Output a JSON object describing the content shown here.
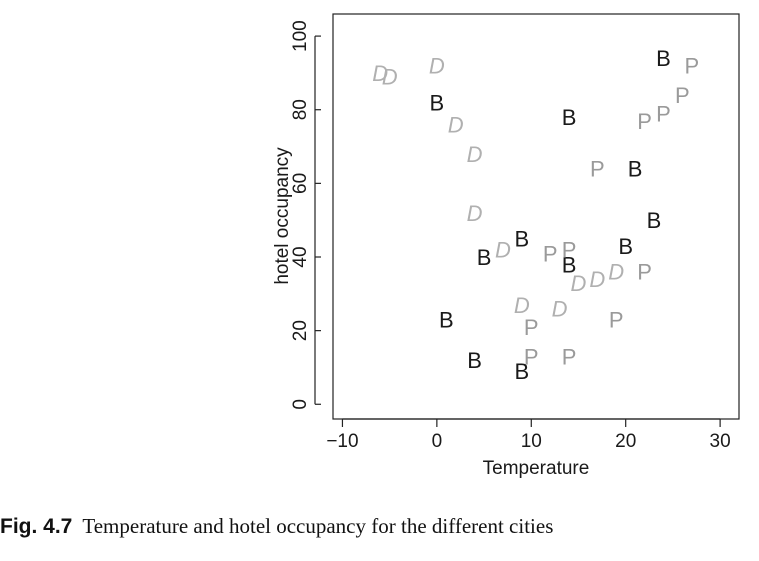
{
  "chart_data": {
    "type": "scatter",
    "xlabel": "Temperature",
    "ylabel": "hotel occupancy",
    "xlim": [
      -11,
      32
    ],
    "ylim": [
      -4,
      106
    ],
    "x_ticks": [
      -10,
      0,
      10,
      20,
      30
    ],
    "y_ticks": [
      0,
      20,
      40,
      60,
      80,
      100
    ],
    "colors": {
      "B": "#1a1a1a",
      "P": "#9a9a9a",
      "D": "#b0b0b0"
    },
    "series": [
      {
        "symbol": "B",
        "points": [
          {
            "x": 24,
            "y": 94
          },
          {
            "x": 0,
            "y": 82
          },
          {
            "x": 14,
            "y": 78
          },
          {
            "x": 21,
            "y": 64
          },
          {
            "x": 23,
            "y": 50
          },
          {
            "x": 9,
            "y": 45
          },
          {
            "x": 20,
            "y": 43
          },
          {
            "x": 5,
            "y": 40
          },
          {
            "x": 14,
            "y": 38
          },
          {
            "x": 1,
            "y": 23
          },
          {
            "x": 4,
            "y": 12
          },
          {
            "x": 9,
            "y": 9
          }
        ]
      },
      {
        "symbol": "P",
        "points": [
          {
            "x": 27,
            "y": 92
          },
          {
            "x": 26,
            "y": 84
          },
          {
            "x": 24,
            "y": 79
          },
          {
            "x": 22,
            "y": 77
          },
          {
            "x": 17,
            "y": 64
          },
          {
            "x": 12,
            "y": 41
          },
          {
            "x": 14,
            "y": 42
          },
          {
            "x": 22,
            "y": 36
          },
          {
            "x": 19,
            "y": 23
          },
          {
            "x": 10,
            "y": 21
          },
          {
            "x": 10,
            "y": 13
          },
          {
            "x": 14,
            "y": 13
          }
        ]
      },
      {
        "symbol": "D",
        "points": [
          {
            "x": -6,
            "y": 90
          },
          {
            "x": -5,
            "y": 89
          },
          {
            "x": 0,
            "y": 92
          },
          {
            "x": 2,
            "y": 76
          },
          {
            "x": 4,
            "y": 68
          },
          {
            "x": 4,
            "y": 52
          },
          {
            "x": 7,
            "y": 42
          },
          {
            "x": 15,
            "y": 33
          },
          {
            "x": 17,
            "y": 34
          },
          {
            "x": 19,
            "y": 36
          },
          {
            "x": 9,
            "y": 27
          },
          {
            "x": 13,
            "y": 26
          }
        ]
      }
    ]
  },
  "caption": {
    "label": "Fig. 4.7",
    "text": "Temperature and hotel occupancy for the different cities"
  }
}
